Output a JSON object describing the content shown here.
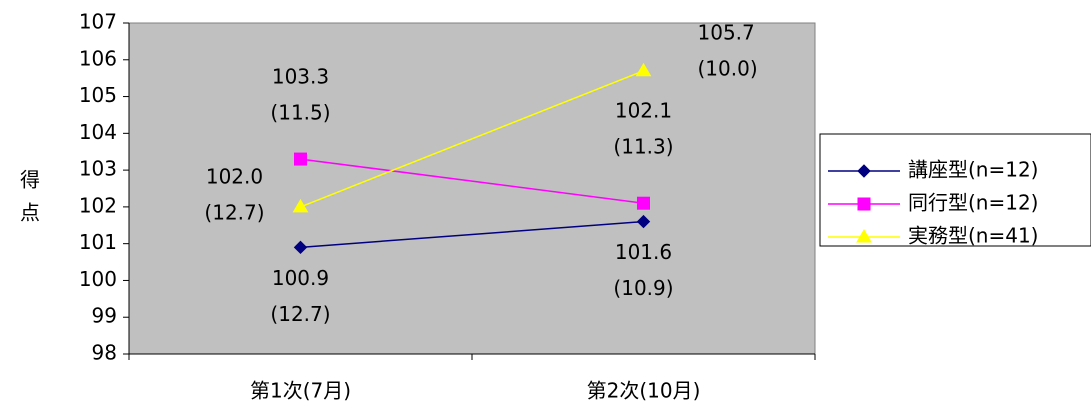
{
  "chart_data": {
    "type": "line",
    "ylabel": "得点",
    "ylim": [
      98,
      107
    ],
    "yticks": [
      98,
      99,
      100,
      101,
      102,
      103,
      104,
      105,
      106,
      107
    ],
    "categories": [
      "第1次(7月)",
      "第2次(10月)"
    ],
    "plot_background": "#c0c0c0",
    "grid": false,
    "legend_position": "right",
    "series": [
      {
        "name": "講座型(n=12)",
        "color": "#000080",
        "marker": "diamond",
        "values": [
          100.9,
          101.6
        ],
        "labels": [
          "100.9",
          "101.6"
        ],
        "sublabels": [
          "(12.7)",
          "(10.9)"
        ]
      },
      {
        "name": "同行型(n=12)",
        "color": "#ff00ff",
        "marker": "square",
        "values": [
          103.3,
          102.1
        ],
        "labels": [
          "103.3",
          "102.1"
        ],
        "sublabels": [
          "(11.5)",
          "(11.3)"
        ]
      },
      {
        "name": "実務型(n=41)",
        "color": "#ffff00",
        "marker": "triangle",
        "values": [
          102.0,
          105.7
        ],
        "labels": [
          "102.0",
          "105.7"
        ],
        "sublabels": [
          "(12.7)",
          "(10.0)"
        ]
      }
    ]
  }
}
